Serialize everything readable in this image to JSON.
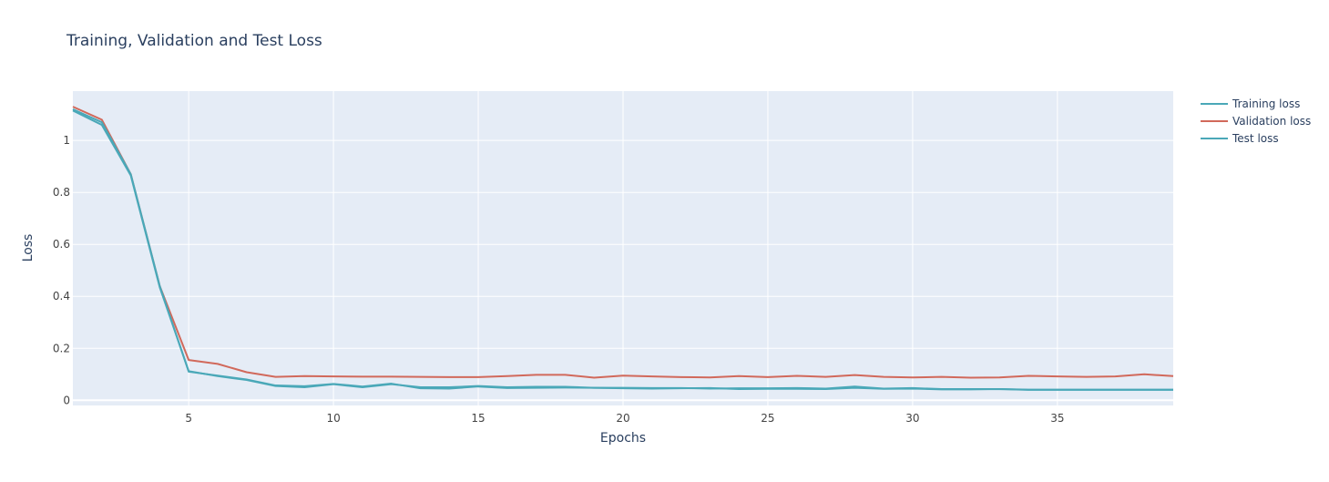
{
  "chart_data": {
    "type": "line",
    "title": "Training, Validation and Test Loss",
    "xlabel": "Epochs",
    "ylabel": "Loss",
    "xlim": [
      1,
      39
    ],
    "ylim": [
      -0.02,
      1.19
    ],
    "x_ticks": [
      5,
      10,
      15,
      20,
      25,
      30,
      35
    ],
    "y_ticks": [
      0,
      0.2,
      0.4,
      0.6,
      0.8,
      1
    ],
    "y_tick_labels": [
      "0",
      "0.2",
      "0.4",
      "0.6",
      "0.8",
      "1"
    ],
    "grid": true,
    "legend_position": "top-right outside",
    "colors": {
      "plot_background": "#e5ecf6",
      "grid": "#ffffff",
      "text": "#2a3f5f",
      "tick_text": "#444444"
    },
    "x": [
      1,
      2,
      3,
      4,
      5,
      6,
      7,
      8,
      9,
      10,
      11,
      12,
      13,
      14,
      15,
      16,
      17,
      18,
      19,
      20,
      21,
      22,
      23,
      24,
      25,
      26,
      27,
      28,
      29,
      30,
      31,
      32,
      33,
      34,
      35,
      36,
      37,
      38,
      39
    ],
    "series": [
      {
        "name": "Training loss",
        "color": "#4aa8b8",
        "values": [
          1.12,
          1.07,
          0.87,
          0.44,
          0.11,
          0.095,
          0.08,
          0.057,
          0.054,
          0.063,
          0.053,
          0.064,
          0.046,
          0.045,
          0.053,
          0.047,
          0.048,
          0.049,
          0.048,
          0.046,
          0.045,
          0.046,
          0.047,
          0.043,
          0.044,
          0.044,
          0.043,
          0.048,
          0.044,
          0.045,
          0.042,
          0.042,
          0.043,
          0.041,
          0.041,
          0.041,
          0.041,
          0.041,
          0.041
        ]
      },
      {
        "name": "Validation loss",
        "color": "#d1695b",
        "values": [
          1.13,
          1.08,
          0.87,
          0.44,
          0.155,
          0.14,
          0.108,
          0.09,
          0.093,
          0.092,
          0.091,
          0.091,
          0.09,
          0.089,
          0.089,
          0.093,
          0.098,
          0.098,
          0.087,
          0.095,
          0.092,
          0.089,
          0.088,
          0.093,
          0.089,
          0.094,
          0.09,
          0.097,
          0.09,
          0.088,
          0.09,
          0.087,
          0.088,
          0.094,
          0.092,
          0.09,
          0.092,
          0.1,
          0.093
        ]
      },
      {
        "name": "Test loss",
        "color": "#4aa8b8",
        "values": [
          1.115,
          1.06,
          0.865,
          0.435,
          0.112,
          0.093,
          0.078,
          0.055,
          0.05,
          0.062,
          0.05,
          0.062,
          0.05,
          0.05,
          0.055,
          0.05,
          0.052,
          0.052,
          0.048,
          0.048,
          0.047,
          0.047,
          0.045,
          0.046,
          0.046,
          0.047,
          0.045,
          0.053,
          0.045,
          0.047,
          0.043,
          0.043,
          0.043,
          0.04,
          0.04,
          0.04,
          0.04,
          0.04,
          0.04
        ]
      }
    ]
  }
}
